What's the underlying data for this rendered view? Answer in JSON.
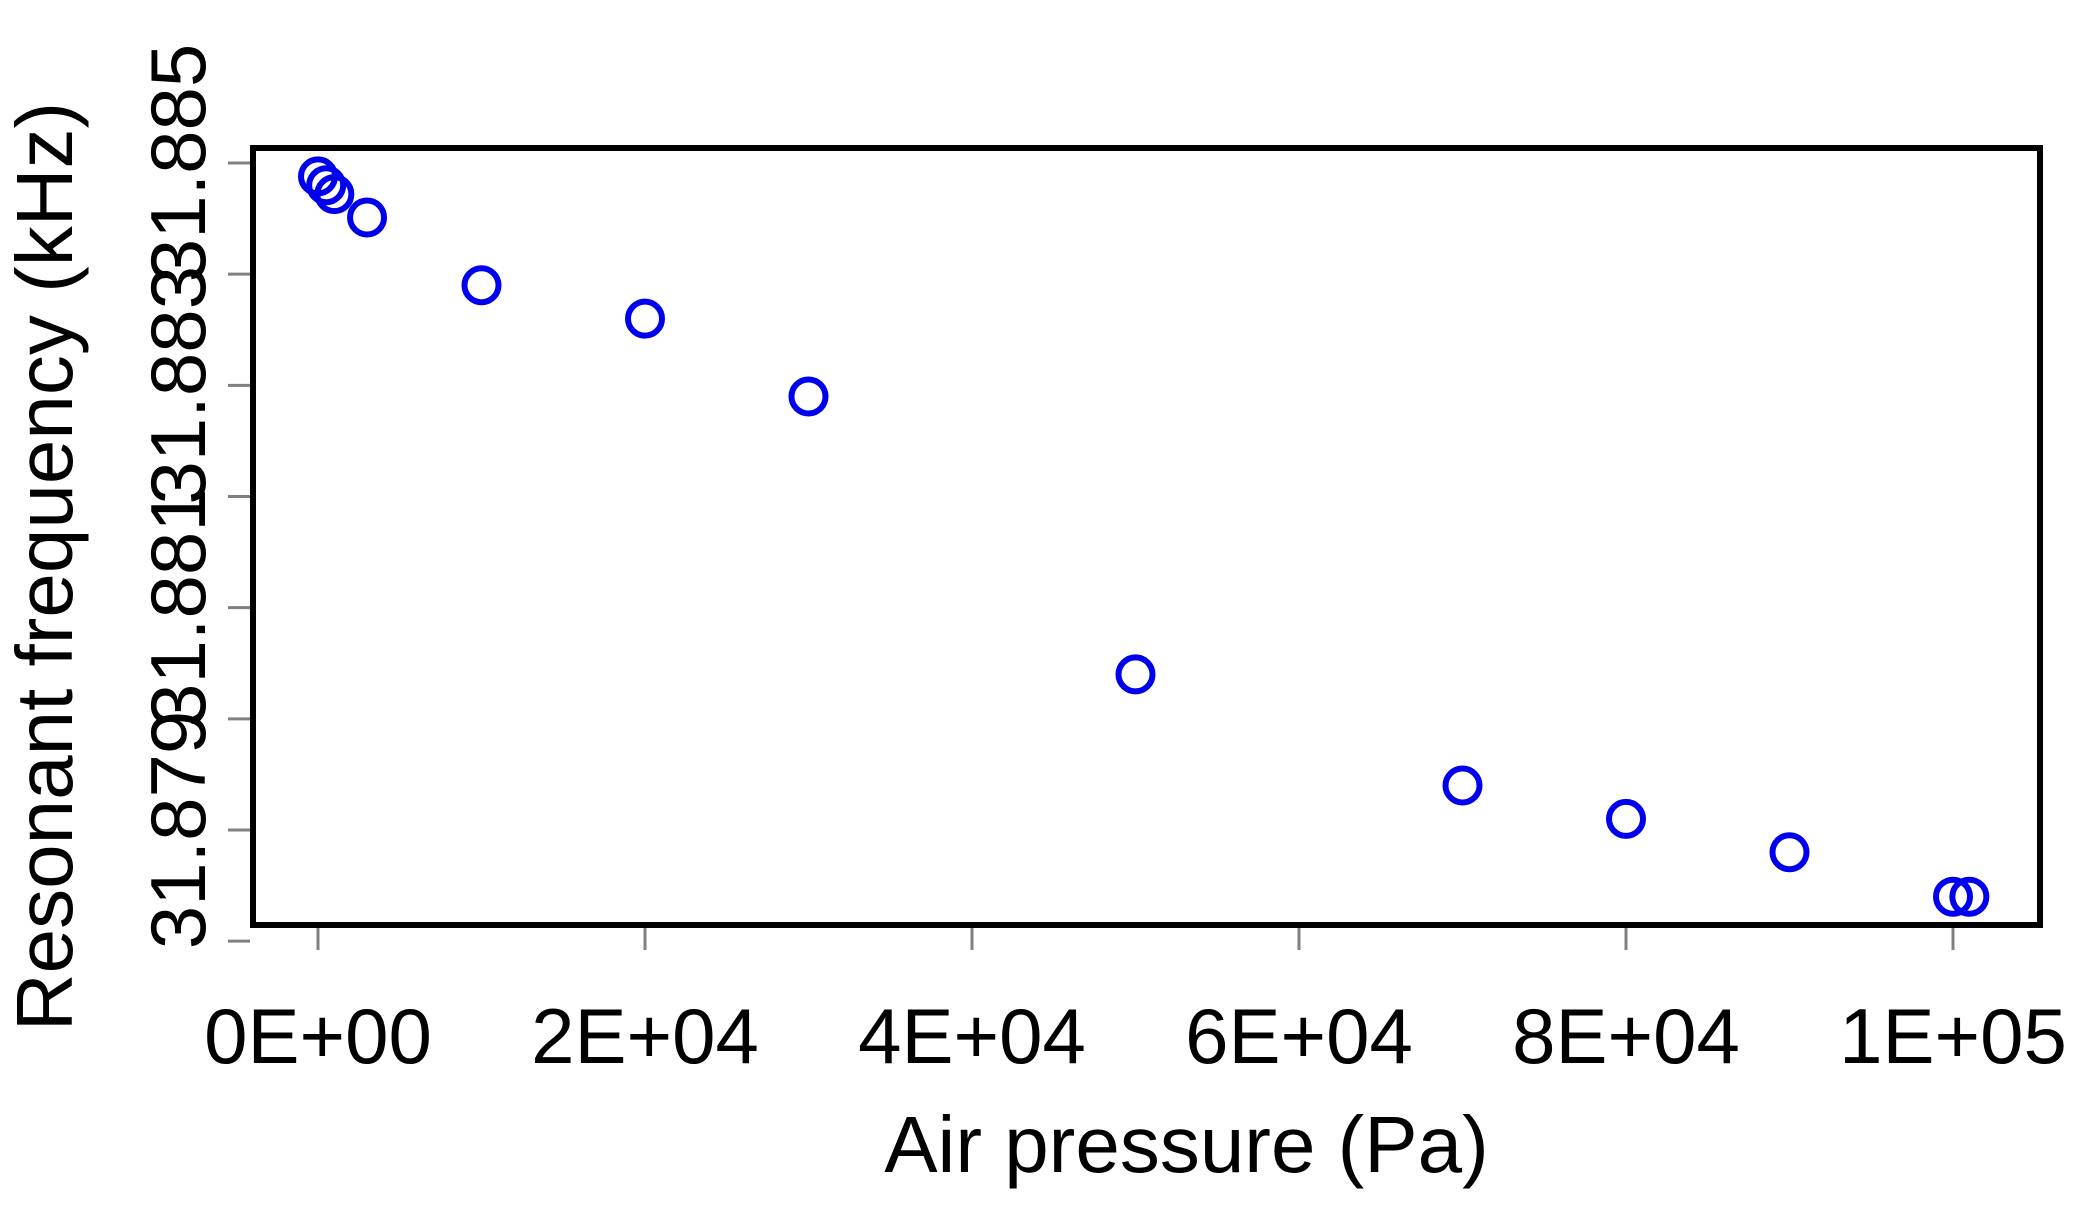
{
  "chart_data": {
    "type": "scatter",
    "title": "",
    "xlabel": "Air pressure (Pa)",
    "ylabel": "Resonant frequency (kHz)",
    "xlim": [
      -2000,
      105000
    ],
    "ylim": [
      31.8781,
      31.885
    ],
    "grid": false,
    "legend": "none",
    "x_ticks": [
      {
        "value": 0,
        "label": "0E+00"
      },
      {
        "value": 20000,
        "label": "2E+04"
      },
      {
        "value": 40000,
        "label": "4E+04"
      },
      {
        "value": 60000,
        "label": "6E+04"
      },
      {
        "value": 80000,
        "label": "8E+04"
      },
      {
        "value": 100000,
        "label": "1E+05"
      }
    ],
    "y_ticks": [
      {
        "value": 31.8789,
        "label": "31.879"
      },
      {
        "value": 31.8809,
        "label": "31.881"
      },
      {
        "value": 31.8829,
        "label": "31.883"
      },
      {
        "value": 31.8849,
        "label": "31.885"
      }
    ],
    "y_minor_ticks": [
      31.8779,
      31.8799,
      31.8819,
      31.8839
    ],
    "series": [
      {
        "x": [
          0,
          500,
          1000,
          3000,
          10000,
          20000,
          30000,
          50000,
          70000,
          80000,
          90000,
          100000,
          101000
        ],
        "y": [
          31.88478,
          31.8847,
          31.88462,
          31.88441,
          31.8838,
          31.8835,
          31.8828,
          31.8803,
          31.8793,
          31.879,
          31.8787,
          31.8783,
          31.8783
        ]
      }
    ],
    "colors": {
      "marker": "#0000ee",
      "axis": "#000000",
      "tick": "#808080"
    }
  }
}
